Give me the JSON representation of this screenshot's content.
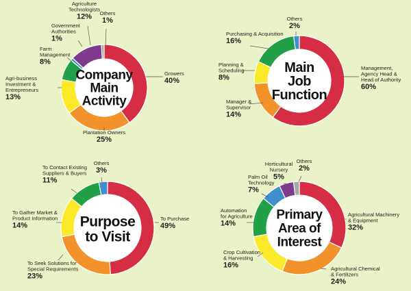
{
  "colors": {
    "background": "#eaf3c8",
    "red": "#d52d43",
    "orange": "#f1922b",
    "yellow": "#fbe92a",
    "green": "#21a046",
    "blue": "#3f8fcd",
    "purple": "#7e3a8c",
    "gray": "#a7a7a7",
    "center": "#ffffff"
  },
  "chart_data": [
    {
      "type": "pie",
      "variant": "donut",
      "title": "Company Main Activity",
      "slices": [
        {
          "label": "Growers",
          "value": 40,
          "display": "40%",
          "color": "red"
        },
        {
          "label": "Plantation Owners",
          "value": 25,
          "display": "25%",
          "color": "orange"
        },
        {
          "label": "Agri-business Investment & Entrepreneurs",
          "value": 13,
          "display": "13%",
          "color": "yellow"
        },
        {
          "label": "Farm Management",
          "value": 8,
          "display": "8%",
          "color": "green"
        },
        {
          "label": "Government Authorities",
          "value": 1,
          "display": "1%",
          "color": "blue"
        },
        {
          "label": "Agriculture Technologists",
          "value": 12,
          "display": "12%",
          "color": "purple"
        },
        {
          "label": "Others",
          "value": 1,
          "display": "1%",
          "color": "gray"
        }
      ]
    },
    {
      "type": "pie",
      "variant": "donut",
      "title": "Main Job Function",
      "slices": [
        {
          "label": "Management, Agency Head & Head of Authority",
          "value": 60,
          "display": "60%",
          "color": "red"
        },
        {
          "label": "Manager & Supervisor",
          "value": 14,
          "display": "14%",
          "color": "orange"
        },
        {
          "label": "Planning & Scheduling",
          "value": 8,
          "display": "8%",
          "color": "yellow"
        },
        {
          "label": "Purchasing & Acquisition",
          "value": 16,
          "display": "16%",
          "color": "green"
        },
        {
          "label": "Others",
          "value": 2,
          "display": "2%",
          "color": "blue"
        }
      ]
    },
    {
      "type": "pie",
      "variant": "donut",
      "title": "Purpose to Visit",
      "slices": [
        {
          "label": "To Purchase",
          "value": 49,
          "display": "49%",
          "color": "red"
        },
        {
          "label": "To Seek Solutions for Special Requirements",
          "value": 23,
          "display": "23%",
          "color": "orange"
        },
        {
          "label": "To Gather Market & Product Information",
          "value": 14,
          "display": "14%",
          "color": "yellow"
        },
        {
          "label": "To Contact Existing Suppliers & Buyers",
          "value": 11,
          "display": "11%",
          "color": "green"
        },
        {
          "label": "Others",
          "value": 3,
          "display": "3%",
          "color": "blue"
        }
      ]
    },
    {
      "type": "pie",
      "variant": "donut",
      "title": "Primary Area of Interest",
      "slices": [
        {
          "label": "Agricultural Machinery & Equipment",
          "value": 32,
          "display": "32%",
          "color": "red"
        },
        {
          "label": "Agricultural Chemical & Fertilizers",
          "value": 24,
          "display": "24%",
          "color": "orange"
        },
        {
          "label": "Crop Cultivation & Harvesting",
          "value": 16,
          "display": "16%",
          "color": "yellow"
        },
        {
          "label": "Automation for Agriculture",
          "value": 14,
          "display": "14%",
          "color": "green"
        },
        {
          "label": "Palm Oil Technology",
          "value": 7,
          "display": "7%",
          "color": "blue"
        },
        {
          "label": "Horticultural Nursery",
          "value": 5,
          "display": "5%",
          "color": "purple"
        },
        {
          "label": "Others",
          "value": 2,
          "display": "2%",
          "color": "gray"
        }
      ]
    }
  ]
}
